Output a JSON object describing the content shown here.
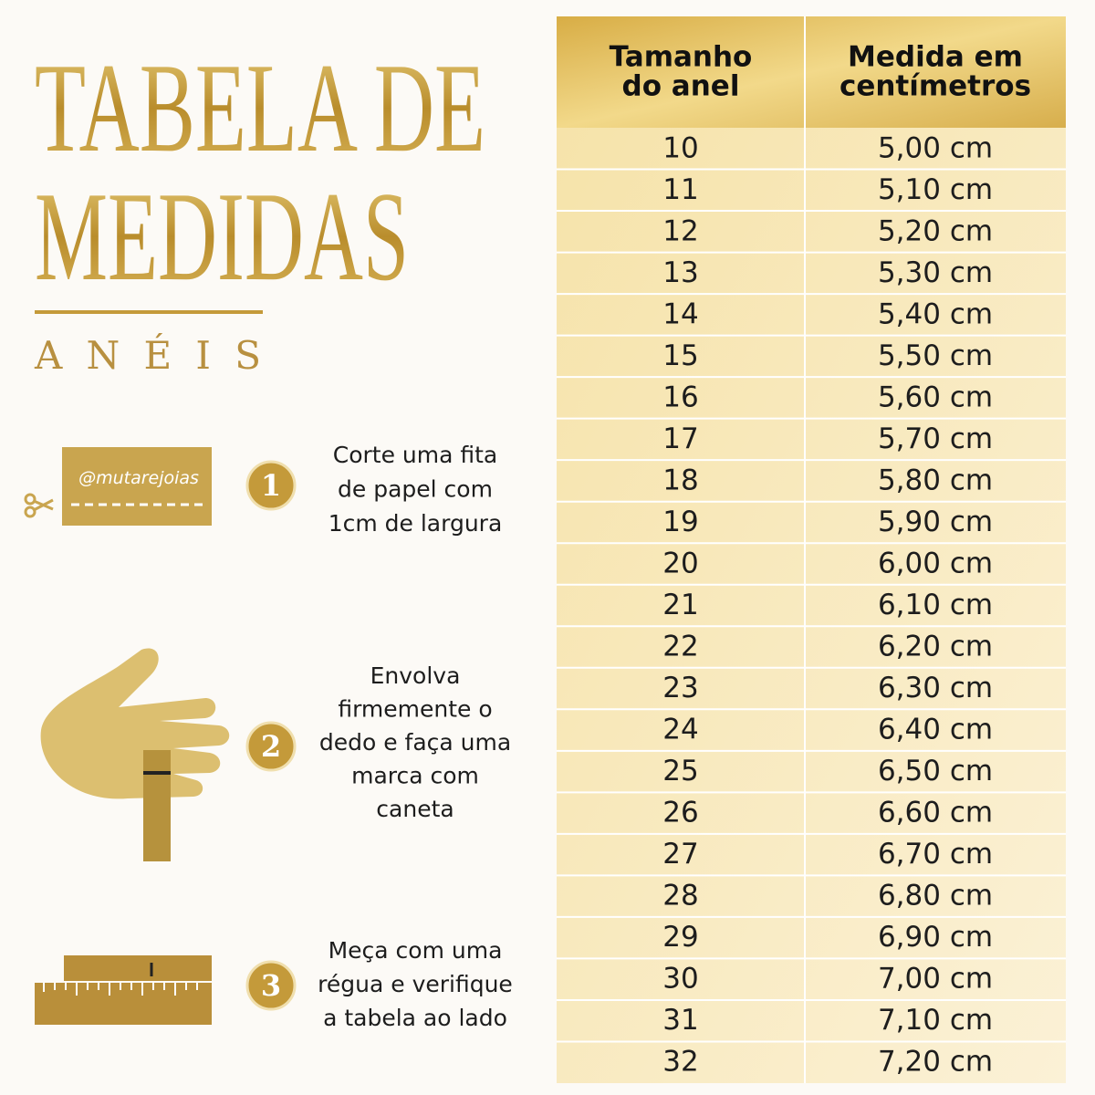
{
  "header": {
    "title_lines": [
      "TABELA DE",
      "MEDIDAS"
    ],
    "subtitle": "ANÉIS"
  },
  "tape_label": "@mutarejoias",
  "steps": [
    {
      "number": "1",
      "lines": [
        "Corte uma fita",
        "de papel com",
        "1cm de largura"
      ]
    },
    {
      "number": "2",
      "lines": [
        "Envolva",
        "firmemente o",
        "dedo e faça uma",
        "marca com",
        "caneta"
      ]
    },
    {
      "number": "3",
      "lines": [
        "Meça com uma",
        "régua e verifique",
        "a tabela ao lado"
      ]
    }
  ],
  "table": {
    "columns": [
      [
        "Tamanho",
        "do anel"
      ],
      [
        "Medida em",
        "centímetros"
      ]
    ],
    "rows": [
      [
        "10",
        "5,00 cm"
      ],
      [
        "11",
        "5,10 cm"
      ],
      [
        "12",
        "5,20 cm"
      ],
      [
        "13",
        "5,30 cm"
      ],
      [
        "14",
        "5,40 cm"
      ],
      [
        "15",
        "5,50 cm"
      ],
      [
        "16",
        "5,60 cm"
      ],
      [
        "17",
        "5,70 cm"
      ],
      [
        "18",
        "5,80 cm"
      ],
      [
        "19",
        "5,90 cm"
      ],
      [
        "20",
        "6,00 cm"
      ],
      [
        "21",
        "6,10 cm"
      ],
      [
        "22",
        "6,20 cm"
      ],
      [
        "23",
        "6,30 cm"
      ],
      [
        "24",
        "6,40 cm"
      ],
      [
        "25",
        "6,50 cm"
      ],
      [
        "26",
        "6,60 cm"
      ],
      [
        "27",
        "6,70 cm"
      ],
      [
        "28",
        "6,80 cm"
      ],
      [
        "29",
        "6,90 cm"
      ],
      [
        "30",
        "7,00 cm"
      ],
      [
        "31",
        "7,10 cm"
      ],
      [
        "32",
        "7,20 cm"
      ]
    ]
  }
}
